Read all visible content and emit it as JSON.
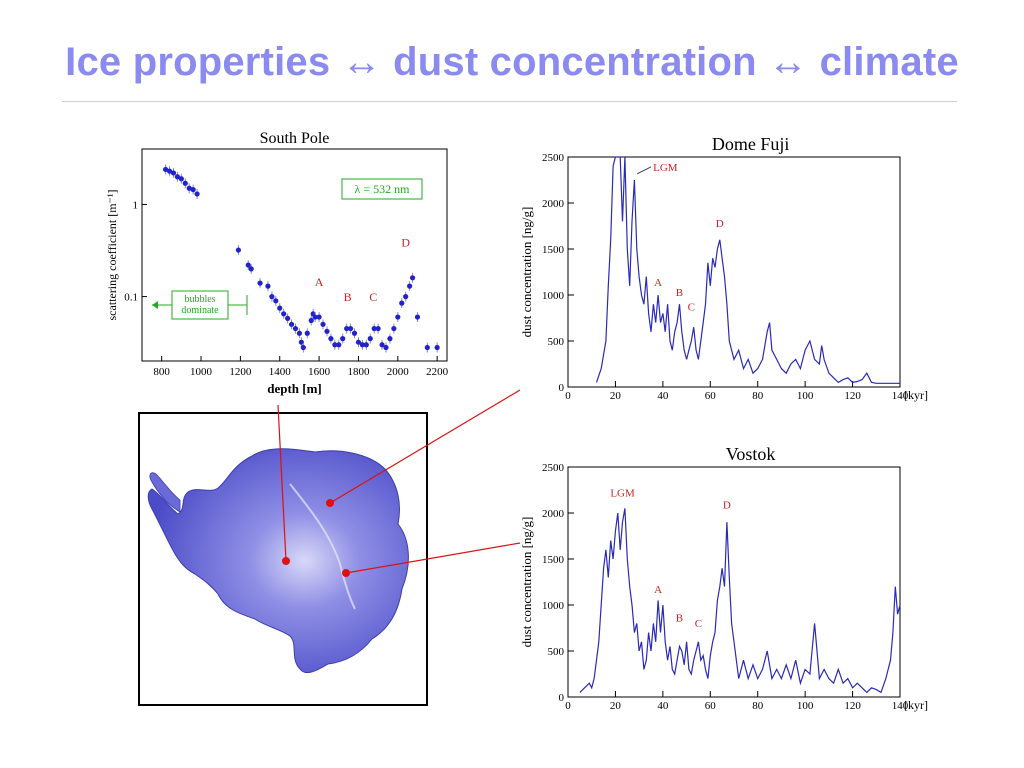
{
  "slide": {
    "title": "Ice properties ↔ dust concentration ↔ climate"
  },
  "colors": {
    "title": "#8A8AF0",
    "trace": "#2a2ab8",
    "marker": "#2222cc",
    "annotation": "#cc2222",
    "callout": "#22aa22",
    "connector": "#dd1111",
    "map_land": "#5a5ad8"
  },
  "map": {
    "description_icon": "antarctica-map",
    "markers": [
      "south-pole",
      "dome-fuji",
      "vostok"
    ]
  },
  "chart_data": [
    {
      "type": "scatter",
      "title": "South Pole",
      "xlabel": "depth [m]",
      "ylabel": "scattering coefficient [m⁻¹]",
      "xlim": [
        700,
        2250
      ],
      "ylim": [
        0.02,
        4
      ],
      "y_scale": "log",
      "xticks": [
        "800",
        "1000",
        "1200",
        "1400",
        "1600",
        "1800",
        "2000",
        "2200"
      ],
      "yticks": [
        "0.1",
        "1"
      ],
      "annotation_lambda": "λ = 532 nm",
      "annotation_bubbles": "bubbles\ndominate",
      "labels": [
        "A",
        "B",
        "C",
        "D"
      ],
      "label_points": [
        [
          1600,
          0.13
        ],
        [
          1745,
          0.09
        ],
        [
          1875,
          0.09
        ],
        [
          2040,
          0.35
        ]
      ],
      "points": [
        [
          820,
          2.4
        ],
        [
          840,
          2.3
        ],
        [
          860,
          2.2
        ],
        [
          880,
          2.0
        ],
        [
          900,
          1.9
        ],
        [
          920,
          1.7
        ],
        [
          940,
          1.5
        ],
        [
          960,
          1.45
        ],
        [
          980,
          1.3
        ],
        [
          1190,
          0.32
        ],
        [
          1240,
          0.22
        ],
        [
          1255,
          0.2
        ],
        [
          1300,
          0.14
        ],
        [
          1340,
          0.13
        ],
        [
          1360,
          0.1
        ],
        [
          1380,
          0.09
        ],
        [
          1400,
          0.075
        ],
        [
          1420,
          0.065
        ],
        [
          1440,
          0.058
        ],
        [
          1460,
          0.05
        ],
        [
          1480,
          0.045
        ],
        [
          1500,
          0.04
        ],
        [
          1510,
          0.032
        ],
        [
          1520,
          0.028
        ],
        [
          1540,
          0.04
        ],
        [
          1560,
          0.055
        ],
        [
          1570,
          0.065
        ],
        [
          1580,
          0.06
        ],
        [
          1600,
          0.06
        ],
        [
          1620,
          0.05
        ],
        [
          1640,
          0.042
        ],
        [
          1660,
          0.035
        ],
        [
          1680,
          0.03
        ],
        [
          1700,
          0.03
        ],
        [
          1720,
          0.035
        ],
        [
          1740,
          0.045
        ],
        [
          1760,
          0.045
        ],
        [
          1780,
          0.04
        ],
        [
          1800,
          0.032
        ],
        [
          1820,
          0.03
        ],
        [
          1840,
          0.03
        ],
        [
          1860,
          0.035
        ],
        [
          1880,
          0.045
        ],
        [
          1900,
          0.045
        ],
        [
          1920,
          0.03
        ],
        [
          1940,
          0.028
        ],
        [
          1960,
          0.035
        ],
        [
          1980,
          0.045
        ],
        [
          2000,
          0.06
        ],
        [
          2020,
          0.085
        ],
        [
          2040,
          0.1
        ],
        [
          2060,
          0.13
        ],
        [
          2075,
          0.16
        ],
        [
          2100,
          0.06
        ],
        [
          2150,
          0.028
        ],
        [
          2200,
          0.028
        ]
      ]
    },
    {
      "type": "line",
      "title": "Dome Fuji",
      "xlabel": "[kyr]",
      "ylabel": "dust concentration [ng/g]",
      "xlim": [
        0,
        140
      ],
      "ylim": [
        0,
        2500
      ],
      "xticks": [
        "0",
        "20",
        "40",
        "60",
        "80",
        "100",
        "120",
        "140"
      ],
      "yticks": [
        "0",
        "500",
        "1000",
        "1500",
        "2000",
        "2500"
      ],
      "labels": [
        "LGM",
        "A",
        "B",
        "C",
        "D"
      ],
      "label_points": [
        [
          30,
          2350
        ],
        [
          38,
          1100
        ],
        [
          47,
          990
        ],
        [
          52,
          830
        ],
        [
          64,
          1740
        ]
      ],
      "x": [
        12,
        14,
        16,
        17,
        18,
        19,
        20,
        21,
        22,
        23,
        24,
        25,
        26,
        27,
        28,
        29,
        30,
        31,
        32,
        33,
        34,
        35,
        36,
        37,
        38,
        39,
        40,
        41,
        42,
        43,
        44,
        45,
        46,
        47,
        48,
        49,
        50,
        51,
        52,
        53,
        54,
        55,
        56,
        57,
        58,
        59,
        60,
        61,
        62,
        63,
        64,
        65,
        66,
        67,
        68,
        70,
        72,
        74,
        76,
        78,
        80,
        82,
        84,
        85,
        86,
        88,
        90,
        92,
        94,
        96,
        98,
        100,
        101,
        102,
        104,
        106,
        107,
        108,
        110,
        112,
        114,
        116,
        118,
        120,
        122,
        124,
        126,
        128,
        130,
        132,
        134,
        136,
        138,
        140
      ],
      "values": [
        50,
        200,
        500,
        1100,
        1600,
        2400,
        2500,
        2500,
        2500,
        1800,
        2500,
        1500,
        1100,
        1800,
        2250,
        1500,
        1200,
        1000,
        900,
        1200,
        800,
        600,
        900,
        700,
        1000,
        700,
        800,
        600,
        900,
        500,
        400,
        600,
        700,
        900,
        600,
        400,
        300,
        400,
        500,
        650,
        400,
        300,
        500,
        700,
        900,
        1350,
        1100,
        1400,
        1300,
        1500,
        1600,
        1400,
        1200,
        900,
        500,
        300,
        400,
        200,
        300,
        150,
        200,
        300,
        600,
        700,
        400,
        300,
        200,
        150,
        250,
        300,
        200,
        400,
        450,
        500,
        300,
        250,
        450,
        300,
        150,
        100,
        50,
        80,
        100,
        50,
        60,
        80,
        150,
        50,
        40,
        40,
        40,
        40,
        40,
        40
      ]
    },
    {
      "type": "line",
      "title": "Vostok",
      "xlabel": "[kyr]",
      "ylabel": "dust concentration [ng/g]",
      "xlim": [
        0,
        140
      ],
      "ylim": [
        0,
        2500
      ],
      "xticks": [
        "0",
        "20",
        "40",
        "60",
        "80",
        "100",
        "120",
        "140"
      ],
      "yticks": [
        "0",
        "500",
        "1000",
        "1500",
        "2000",
        "2500"
      ],
      "labels": [
        "LGM",
        "A",
        "B",
        "C",
        "D"
      ],
      "label_points": [
        [
          23,
          2180
        ],
        [
          38,
          1130
        ],
        [
          47,
          820
        ],
        [
          55,
          760
        ],
        [
          67,
          2050
        ]
      ],
      "x": [
        5,
        7,
        9,
        10,
        11,
        12,
        13,
        14,
        15,
        16,
        17,
        18,
        19,
        20,
        21,
        22,
        23,
        24,
        25,
        26,
        27,
        28,
        29,
        30,
        31,
        32,
        33,
        34,
        35,
        36,
        37,
        38,
        39,
        40,
        41,
        42,
        43,
        44,
        45,
        46,
        47,
        48,
        49,
        50,
        51,
        52,
        53,
        54,
        55,
        56,
        57,
        58,
        59,
        60,
        61,
        62,
        63,
        64,
        65,
        66,
        67,
        68,
        69,
        70,
        72,
        74,
        76,
        78,
        80,
        82,
        84,
        86,
        88,
        90,
        92,
        94,
        96,
        98,
        100,
        102,
        104,
        105,
        106,
        108,
        110,
        112,
        114,
        116,
        118,
        120,
        122,
        124,
        126,
        128,
        130,
        132,
        134,
        136,
        137,
        138,
        139,
        140
      ],
      "values": [
        50,
        100,
        150,
        100,
        200,
        400,
        600,
        1000,
        1400,
        1600,
        1300,
        1700,
        1500,
        1800,
        2000,
        1600,
        1900,
        2050,
        1500,
        1200,
        1000,
        700,
        800,
        500,
        600,
        300,
        400,
        700,
        500,
        800,
        600,
        1050,
        700,
        1000,
        600,
        400,
        550,
        300,
        250,
        400,
        550,
        500,
        350,
        600,
        300,
        250,
        400,
        500,
        600,
        400,
        450,
        300,
        200,
        450,
        600,
        700,
        1050,
        1200,
        1400,
        1200,
        1900,
        1300,
        800,
        600,
        200,
        400,
        200,
        350,
        200,
        300,
        500,
        200,
        300,
        200,
        350,
        200,
        400,
        150,
        300,
        250,
        800,
        500,
        200,
        300,
        200,
        150,
        300,
        150,
        200,
        100,
        150,
        100,
        50,
        100,
        80,
        50,
        200,
        400,
        700,
        1200,
        900,
        1000
      ]
    }
  ]
}
